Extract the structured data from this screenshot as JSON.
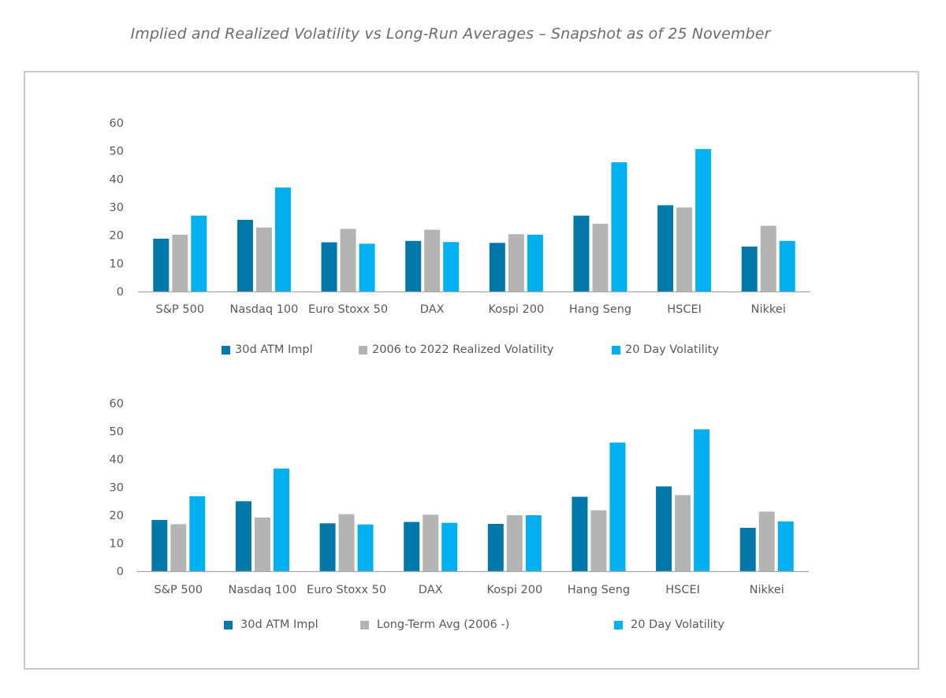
{
  "page": {
    "title": "Implied and Realized Volatility vs Long-Run Averages – Snapshot as of 25 November"
  },
  "chart_data": [
    {
      "type": "bar",
      "categories": [
        "S&P 500",
        "Nasdaq 100",
        "Euro Stoxx 50",
        "DAX",
        "Kospi 200",
        "Hang Seng",
        "HSCEI",
        "Nikkei"
      ],
      "series": [
        {
          "name": "30d ATM Impl",
          "color": "#0078aa",
          "values": [
            18.8,
            25.5,
            17.5,
            18.0,
            17.3,
            27.0,
            30.7,
            16.0
          ]
        },
        {
          "name": "2006 to 2022 Realized Volatility",
          "color": "#b4b4b4",
          "values": [
            20.2,
            22.8,
            22.3,
            22.0,
            20.4,
            24.1,
            29.9,
            23.4
          ]
        },
        {
          "name": "20 Day Volatility",
          "color": "#00b0f0",
          "values": [
            27.0,
            37.0,
            17.0,
            17.6,
            20.2,
            46.0,
            50.7,
            18.0
          ]
        }
      ],
      "yticks": [
        0,
        10,
        20,
        30,
        40,
        50,
        60
      ],
      "ylim": [
        0,
        60
      ],
      "legend_position": "bottom"
    },
    {
      "type": "bar",
      "categories": [
        "S&P 500",
        "Nasdaq 100",
        "Euro Stoxx 50",
        "DAX",
        "Kospi 200",
        "Hang Seng",
        "HSCEI",
        "Nikkei"
      ],
      "series": [
        {
          "name": "30d ATM Impl",
          "color": "#0078aa",
          "values": [
            18.3,
            25.0,
            17.1,
            17.6,
            16.9,
            26.6,
            30.3,
            15.5
          ]
        },
        {
          "name": "Long-Term Avg (2006 -)",
          "color": "#b4b4b4",
          "values": [
            16.8,
            19.2,
            20.4,
            20.2,
            20.0,
            21.8,
            27.2,
            21.3
          ]
        },
        {
          "name": "20 Day Volatility",
          "color": "#00b0f0",
          "values": [
            26.8,
            36.7,
            16.7,
            17.3,
            20.0,
            46.0,
            50.7,
            17.8
          ]
        }
      ],
      "yticks": [
        0,
        10,
        20,
        30,
        40,
        50,
        60
      ],
      "ylim": [
        0,
        60
      ],
      "legend_position": "bottom"
    }
  ]
}
